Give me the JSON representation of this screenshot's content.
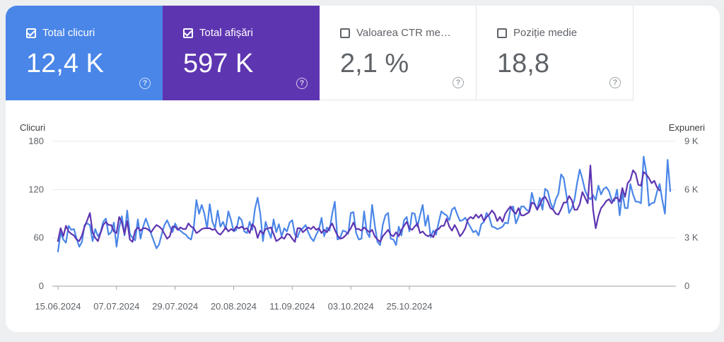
{
  "metrics": [
    {
      "label": "Total clicuri",
      "value": "12,4 K",
      "checked": true,
      "color": "#4a86e8"
    },
    {
      "label": "Total afișări",
      "value": "597 K",
      "checked": true,
      "color": "#5e35b1"
    },
    {
      "label": "Valoarea CTR me…",
      "value": "2,1 %",
      "checked": false
    },
    {
      "label": "Poziție medie",
      "value": "18,8",
      "checked": false
    }
  ],
  "help_glyph": "?",
  "chart_data": {
    "type": "line",
    "y_left_label": "Clicuri",
    "y_right_label": "Expuneri",
    "y_left_ticks": [
      "0",
      "60",
      "120",
      "180"
    ],
    "y_right_ticks": [
      "0",
      "3 K",
      "6 K",
      "9 K"
    ],
    "ylim_left": [
      0,
      180
    ],
    "ylim_right": [
      0,
      9000
    ],
    "x_tick_labels": [
      "15.06.2024",
      "07.07.2024",
      "29.07.2024",
      "20.08.2024",
      "11.09.2024",
      "03.10.2024",
      "25.10.2024"
    ],
    "x_tick_index": [
      0,
      22,
      44,
      66,
      88,
      110,
      132
    ],
    "grid": true,
    "series": [
      {
        "axis": "left",
        "color": "#4a86e8",
        "values": [
          43,
          67,
          58,
          54,
          75,
          70,
          71,
          59,
          49,
          55,
          76,
          78,
          76,
          56,
          71,
          62,
          67,
          80,
          84,
          64,
          67,
          79,
          49,
          73,
          87,
          63,
          94,
          65,
          60,
          57,
          83,
          59,
          74,
          84,
          75,
          65,
          56,
          47,
          52,
          65,
          76,
          82,
          74,
          67,
          78,
          71,
          69,
          66,
          64,
          60,
          58,
          73,
          107,
          90,
          101,
          90,
          72,
          102,
          80,
          72,
          94,
          74,
          80,
          71,
          93,
          82,
          68,
          70,
          86,
          82,
          68,
          66,
          80,
          70,
          96,
          110,
          90,
          56,
          80,
          69,
          60,
          83,
          67,
          77,
          62,
          72,
          68,
          79,
          82,
          64,
          61,
          70,
          72,
          76,
          67,
          60,
          56,
          64,
          70,
          85,
          62,
          73,
          69,
          90,
          105,
          58,
          60,
          69,
          68,
          65,
          91,
          92,
          66,
          58,
          59,
          93,
          67,
          61,
          101,
          76,
          55,
          51,
          76,
          88,
          91,
          59,
          58,
          51,
          74,
          63,
          82,
          86,
          68,
          91,
          90,
          74,
          88,
          101,
          75,
          88,
          61,
          69,
          64,
          79,
          93,
          90,
          88,
          82,
          95,
          98,
          89,
          81,
          82,
          85,
          79,
          73,
          67,
          69,
          63,
          77,
          80,
          91,
          86,
          74,
          73,
          71,
          72,
          74,
          79,
          78,
          97,
          99,
          78,
          86,
          99,
          99,
          95,
          93,
          116,
          103,
          95,
          110,
          95,
          121,
          118,
          104,
          96,
          108,
          115,
          139,
          134,
          113,
          91,
          97,
          107,
          128,
          145,
          133,
          119,
          111,
          108,
          113,
          107,
          125,
          114,
          121,
          123,
          118,
          107,
          106,
          120,
          88,
          116,
          97,
          97,
          127,
          114,
          105,
          105,
          103,
          161,
          141,
          100,
          103,
          104,
          117,
          127,
          107,
          90,
          157,
          118
        ],
        "_note": ""
      },
      {
        "axis": "left",
        "color": "#5e35b1",
        "values": [
          56,
          72,
          62,
          75,
          68,
          65,
          63,
          58,
          56,
          63,
          74,
          82,
          91,
          67,
          60,
          56,
          66,
          76,
          80,
          76,
          76,
          68,
          66,
          86,
          79,
          65,
          81,
          58,
          55,
          69,
          73,
          69,
          72,
          72,
          70,
          67,
          72,
          76,
          74,
          71,
          65,
          59,
          62,
          74,
          74,
          70,
          73,
          71,
          71,
          78,
          74,
          72,
          66,
          68,
          71,
          72,
          72,
          72,
          70,
          71,
          66,
          64,
          68,
          73,
          68,
          71,
          69,
          74,
          72,
          74,
          71,
          72,
          66,
          77,
          73,
          60,
          69,
          65,
          71,
          72,
          73,
          65,
          56,
          58,
          61,
          59,
          65,
          64,
          59,
          55,
          72,
          72,
          67,
          70,
          73,
          71,
          74,
          70,
          72,
          66,
          70,
          67,
          73,
          78,
          70,
          63,
          59,
          60,
          63,
          67,
          72,
          79,
          71,
          71,
          69,
          73,
          70,
          67,
          70,
          62,
          58,
          55,
          62,
          66,
          70,
          64,
          62,
          67,
          62,
          70,
          75,
          80,
          72,
          70,
          74,
          78,
          66,
          68,
          64,
          62,
          64,
          61,
          70,
          71,
          75,
          75,
          84,
          74,
          69,
          76,
          70,
          62,
          66,
          72,
          83,
          86,
          84,
          89,
          85,
          89,
          81,
          86,
          89,
          94,
          90,
          81,
          86,
          80,
          90,
          95,
          99,
          93,
          90,
          97,
          88,
          88,
          90,
          92,
          104,
          102,
          95,
          101,
          109,
          111,
          105,
          97,
          95,
          90,
          89,
          96,
          104,
          104,
          112,
          107,
          95,
          95,
          102,
          117,
          110,
          103,
          150,
          95,
          72,
          87,
          97,
          101,
          106,
          108,
          103,
          109,
          110,
          105,
          122,
          111,
          128,
          132,
          144,
          140,
          126,
          125,
          142,
          139,
          134,
          128,
          131,
          123,
          119
        ]
      }
    ]
  }
}
